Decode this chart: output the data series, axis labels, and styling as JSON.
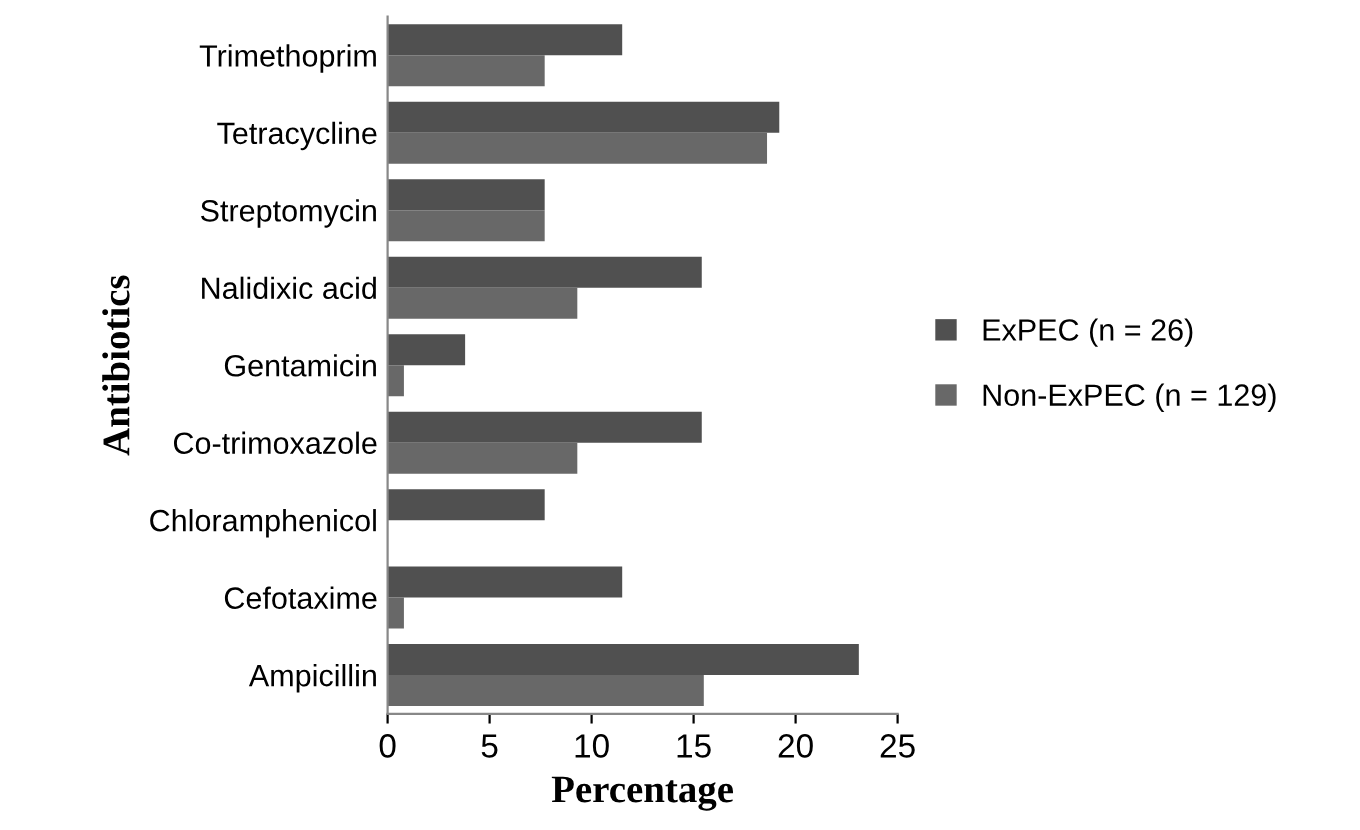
{
  "chart_data": {
    "type": "bar",
    "orientation": "horizontal",
    "xlabel": "Percentage",
    "ylabel": "Antibiotics",
    "categories": [
      "Trimethoprim",
      "Tetracycline",
      "Streptomycin",
      "Nalidixic acid",
      "Gentamicin",
      "Co-trimoxazole",
      "Chloramphenicol",
      "Cefotaxime",
      "Ampicillin"
    ],
    "series": [
      {
        "name": "ExPEC (n = 26)",
        "color": "#505050",
        "values": [
          11.5,
          19.2,
          7.7,
          15.4,
          3.8,
          15.4,
          7.7,
          11.5,
          23.1
        ]
      },
      {
        "name": "Non-ExPEC (n = 129)",
        "color": "#686868",
        "values": [
          7.7,
          18.6,
          7.7,
          9.3,
          0.8,
          9.3,
          0,
          0.8,
          15.5
        ]
      }
    ],
    "xlim": [
      0,
      25
    ],
    "xticks": [
      0,
      5,
      10,
      15,
      20,
      25
    ],
    "grid": false,
    "legend": "right"
  }
}
